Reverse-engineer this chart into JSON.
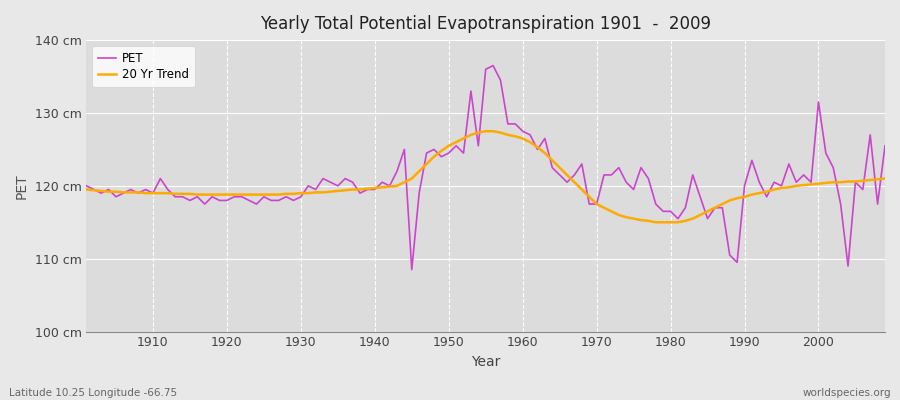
{
  "title": "Yearly Total Potential Evapotranspiration 1901  -  2009",
  "xlabel": "Year",
  "ylabel": "PET",
  "ylim": [
    100,
    140
  ],
  "yticks": [
    100,
    110,
    120,
    130,
    140
  ],
  "ytick_labels": [
    "100 cm",
    "110 cm",
    "120 cm",
    "130 cm",
    "140 cm"
  ],
  "xlim": [
    1901,
    2009
  ],
  "xticks": [
    1910,
    1920,
    1930,
    1940,
    1950,
    1960,
    1970,
    1980,
    1990,
    2000
  ],
  "bg_color": "#e8e8e8",
  "plot_bg_color": "#dcdcdc",
  "pet_color": "#cc44cc",
  "trend_color": "#ffaa00",
  "pet_label": "PET",
  "trend_label": "20 Yr Trend",
  "subtitle_left": "Latitude 10.25 Longitude -66.75",
  "subtitle_right": "worldspecies.org",
  "years": [
    1901,
    1902,
    1903,
    1904,
    1905,
    1906,
    1907,
    1908,
    1909,
    1910,
    1911,
    1912,
    1913,
    1914,
    1915,
    1916,
    1917,
    1918,
    1919,
    1920,
    1921,
    1922,
    1923,
    1924,
    1925,
    1926,
    1927,
    1928,
    1929,
    1930,
    1931,
    1932,
    1933,
    1934,
    1935,
    1936,
    1937,
    1938,
    1939,
    1940,
    1941,
    1942,
    1943,
    1944,
    1945,
    1946,
    1947,
    1948,
    1949,
    1950,
    1951,
    1952,
    1953,
    1954,
    1955,
    1956,
    1957,
    1958,
    1959,
    1960,
    1961,
    1962,
    1963,
    1964,
    1965,
    1966,
    1967,
    1968,
    1969,
    1970,
    1971,
    1972,
    1973,
    1974,
    1975,
    1976,
    1977,
    1978,
    1979,
    1980,
    1981,
    1982,
    1983,
    1984,
    1985,
    1986,
    1987,
    1988,
    1989,
    1990,
    1991,
    1992,
    1993,
    1994,
    1995,
    1996,
    1997,
    1998,
    1999,
    2000,
    2001,
    2002,
    2003,
    2004,
    2005,
    2006,
    2007,
    2008,
    2009
  ],
  "pet_values": [
    120.0,
    119.5,
    119.0,
    119.5,
    118.5,
    119.0,
    119.5,
    119.0,
    119.5,
    119.0,
    121.0,
    119.5,
    118.5,
    118.5,
    118.0,
    118.5,
    117.5,
    118.5,
    118.0,
    118.0,
    118.5,
    118.5,
    118.0,
    117.5,
    118.5,
    118.0,
    118.0,
    118.5,
    118.0,
    118.5,
    120.0,
    119.5,
    121.0,
    120.5,
    120.0,
    121.0,
    120.5,
    119.0,
    119.5,
    119.5,
    120.5,
    120.0,
    122.0,
    125.0,
    108.5,
    119.0,
    124.5,
    125.0,
    124.0,
    124.5,
    125.5,
    124.5,
    133.0,
    125.5,
    136.0,
    136.5,
    134.5,
    128.5,
    128.5,
    127.5,
    127.0,
    125.0,
    126.5,
    122.5,
    121.5,
    120.5,
    121.5,
    123.0,
    117.5,
    117.5,
    121.5,
    121.5,
    122.5,
    120.5,
    119.5,
    122.5,
    121.0,
    117.5,
    116.5,
    116.5,
    115.5,
    117.0,
    121.5,
    118.5,
    115.5,
    117.0,
    117.0,
    110.5,
    109.5,
    120.0,
    123.5,
    120.5,
    118.5,
    120.5,
    120.0,
    123.0,
    120.5,
    121.5,
    120.5,
    131.5,
    124.5,
    122.5,
    117.5,
    109.0,
    120.5,
    119.5,
    127.0,
    117.5,
    125.5
  ],
  "trend_values": [
    119.5,
    119.4,
    119.3,
    119.2,
    119.2,
    119.1,
    119.1,
    119.1,
    119.0,
    119.0,
    119.0,
    119.0,
    118.9,
    118.9,
    118.9,
    118.8,
    118.8,
    118.8,
    118.8,
    118.8,
    118.8,
    118.8,
    118.8,
    118.8,
    118.8,
    118.8,
    118.8,
    118.9,
    118.9,
    119.0,
    119.0,
    119.1,
    119.1,
    119.2,
    119.3,
    119.4,
    119.5,
    119.5,
    119.6,
    119.7,
    119.8,
    119.9,
    120.0,
    120.5,
    121.0,
    122.0,
    123.0,
    124.0,
    124.8,
    125.5,
    126.0,
    126.5,
    127.0,
    127.3,
    127.5,
    127.5,
    127.3,
    127.0,
    126.8,
    126.5,
    126.0,
    125.3,
    124.5,
    123.5,
    122.5,
    121.5,
    120.5,
    119.5,
    118.5,
    117.5,
    117.0,
    116.5,
    116.0,
    115.7,
    115.5,
    115.3,
    115.2,
    115.0,
    115.0,
    115.0,
    115.0,
    115.2,
    115.5,
    116.0,
    116.5,
    117.0,
    117.5,
    118.0,
    118.3,
    118.5,
    118.8,
    119.0,
    119.2,
    119.5,
    119.7,
    119.8,
    120.0,
    120.1,
    120.2,
    120.3,
    120.4,
    120.5,
    120.5,
    120.6,
    120.6,
    120.7,
    120.8,
    120.9,
    121.0
  ]
}
